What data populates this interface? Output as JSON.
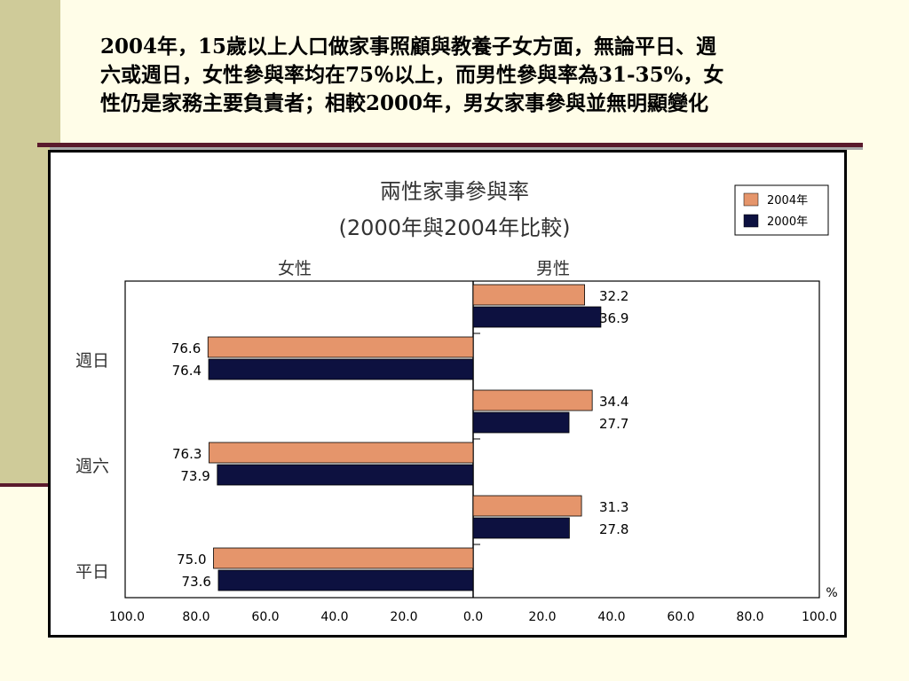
{
  "slide": {
    "title_line1": "2004年，15歲以上人口做家事照顧與教養子女方面，無論平日、週",
    "title_line2": "六或週日，女性參與率均在75％以上，而男性參與率為31-35%，女",
    "title_line3": "性仍是家務主要負責者；相較2000年，男女家事參與並無明顯變化"
  },
  "colors": {
    "series_2004": "#e5956b",
    "series_2000": "#0d1140"
  },
  "chart_data": {
    "type": "bar",
    "orientation": "horizontal",
    "title_line1": "兩性家事參與率",
    "title_line2": "(2000年與2004年比較)",
    "panel_female_label": "女性",
    "panel_male_label": "男性",
    "unit": "%",
    "categories": [
      "週日",
      "週六",
      "平日"
    ],
    "series": [
      {
        "name": "2004年",
        "female": [
          76.6,
          76.3,
          75.0
        ],
        "male": [
          32.2,
          34.4,
          31.3
        ],
        "female_labels": [
          "76.6",
          "76.3",
          "75.0"
        ],
        "male_labels": [
          "32.2",
          "34.4",
          "31.3"
        ]
      },
      {
        "name": "2000年",
        "female": [
          76.4,
          73.9,
          73.6
        ],
        "male": [
          36.9,
          27.7,
          27.8
        ],
        "female_labels": [
          "76.4",
          "73.9",
          "73.6"
        ],
        "male_labels": [
          "36.9",
          "27.7",
          "27.8"
        ]
      }
    ],
    "x_ticks_female": [
      "100.0",
      "80.0",
      "60.0",
      "40.0",
      "20.0"
    ],
    "x_ticks_male": [
      "0.0",
      "20.0",
      "40.0",
      "60.0",
      "80.0",
      "100.0"
    ],
    "xlim": [
      0,
      100
    ],
    "legend_position": "top-right",
    "grid": false
  }
}
